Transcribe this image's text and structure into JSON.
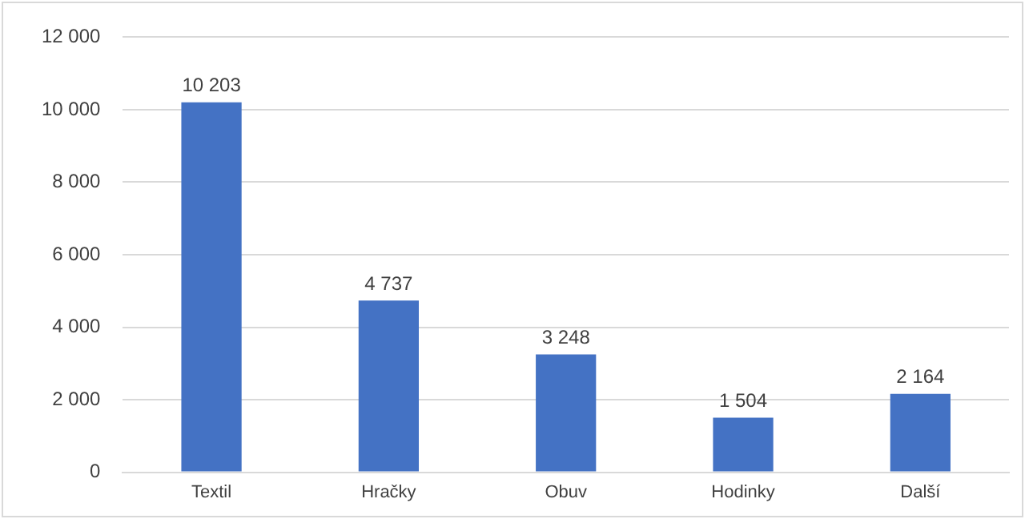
{
  "chart_data": {
    "type": "bar",
    "categories": [
      "Textil",
      "Hračky",
      "Obuv",
      "Hodinky",
      "Další"
    ],
    "values": [
      10203,
      4737,
      3248,
      1504,
      2164
    ],
    "value_labels": [
      "10 203",
      "4 737",
      "3 248",
      "1 504",
      "2 164"
    ],
    "color": "#4472c4",
    "ylim": [
      0,
      12000
    ],
    "yticks": [
      {
        "value": 0,
        "label": "0"
      },
      {
        "value": 2000,
        "label": "2 000"
      },
      {
        "value": 4000,
        "label": "4 000"
      },
      {
        "value": 6000,
        "label": "6 000"
      },
      {
        "value": 8000,
        "label": "8 000"
      },
      {
        "value": 10000,
        "label": "10 000"
      },
      {
        "value": 12000,
        "label": "12 000"
      }
    ],
    "grid": "y"
  }
}
